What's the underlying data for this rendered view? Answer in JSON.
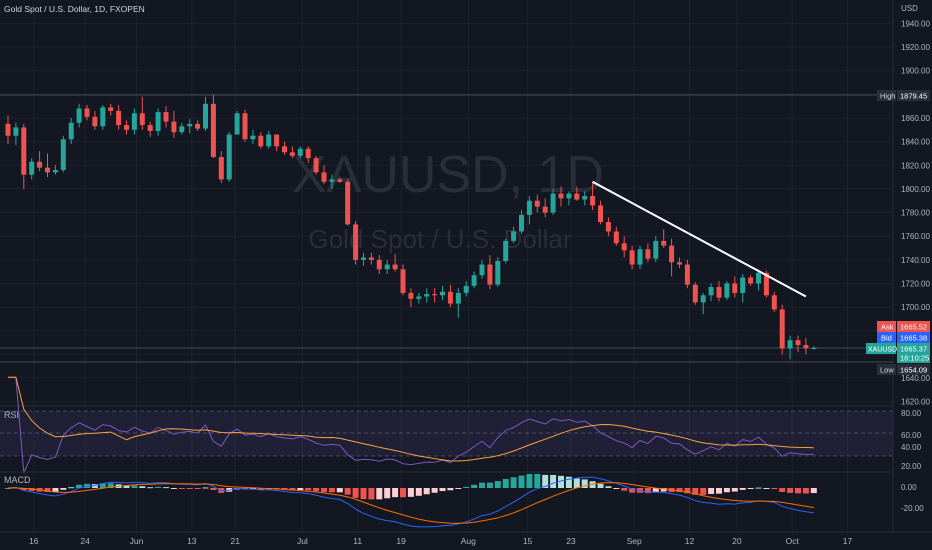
{
  "header": {
    "symbol_desc": "Gold Spot / U.S. Dollar, 1D, FXOPEN"
  },
  "watermark": {
    "ticker": "XAUUSD, 1D",
    "description": "Gold Spot / U.S. Dollar"
  },
  "price_axis": {
    "currency": "USD",
    "ticks": [
      "1940.00",
      "1920.00",
      "1900.00",
      "1880.00",
      "1860.00",
      "1840.00",
      "1820.00",
      "1800.00",
      "1780.00",
      "1760.00",
      "1740.00",
      "1720.00",
      "1700.00",
      "1680.00",
      "1660.00",
      "1640.00",
      "1620.00"
    ]
  },
  "badges": {
    "high_label": "High",
    "high_value": "1879.45",
    "ask_label": "Ask",
    "ask_value": "1665.52",
    "bid_label": "Bid",
    "bid_value": "1665.38",
    "last_label": "XAUUSD",
    "last_value": "1665.37",
    "countdown": "18:10:25",
    "low_label": "Low",
    "low_value": "1654.09"
  },
  "rsi": {
    "label": "RSI",
    "ticks": [
      "80.00",
      "60.00",
      "40.00",
      "20.00"
    ],
    "range": [
      20,
      80
    ],
    "band": [
      30,
      70
    ]
  },
  "macd": {
    "label": "MACD",
    "ticks": [
      "0.00",
      "-20.00"
    ]
  },
  "time_axis": {
    "labels": [
      "16",
      "24",
      "Jun",
      "13",
      "21",
      "Jul",
      "11",
      "19",
      "Aug",
      "15",
      "23",
      "Sep",
      "12",
      "20",
      "Oct",
      "17"
    ]
  },
  "colors": {
    "up": "#26a69a",
    "down": "#ef5350",
    "bg": "#131722",
    "grid": "#1e222d",
    "text": "#b2b5be",
    "rsi_line": "#7e57c2",
    "rsi_ma": "#f7a440",
    "macd_line": "#2962ff",
    "signal_line": "#ff6d00"
  },
  "chart_data": {
    "type": "candlestick",
    "title": "XAUUSD, 1D",
    "ylim": [
      1620,
      1950
    ],
    "trendline": {
      "from": {
        "index": 74,
        "price": 1806
      },
      "to": {
        "index": 101,
        "price": 1709
      }
    },
    "ohlc": [
      [
        1855,
        1862,
        1838,
        1845
      ],
      [
        1845,
        1856,
        1837,
        1852
      ],
      [
        1852,
        1855,
        1800,
        1812
      ],
      [
        1812,
        1826,
        1808,
        1823
      ],
      [
        1823,
        1832,
        1815,
        1818
      ],
      [
        1818,
        1830,
        1810,
        1814
      ],
      [
        1814,
        1820,
        1812,
        1816
      ],
      [
        1816,
        1845,
        1814,
        1842
      ],
      [
        1842,
        1860,
        1838,
        1856
      ],
      [
        1856,
        1872,
        1852,
        1868
      ],
      [
        1868,
        1871,
        1858,
        1861
      ],
      [
        1861,
        1866,
        1850,
        1853
      ],
      [
        1853,
        1871,
        1850,
        1869
      ],
      [
        1869,
        1872,
        1862,
        1866
      ],
      [
        1866,
        1871,
        1850,
        1854
      ],
      [
        1854,
        1858,
        1846,
        1850
      ],
      [
        1850,
        1868,
        1846,
        1864
      ],
      [
        1864,
        1878,
        1850,
        1854
      ],
      [
        1854,
        1857,
        1844,
        1849
      ],
      [
        1849,
        1868,
        1845,
        1865
      ],
      [
        1865,
        1870,
        1852,
        1857
      ],
      [
        1857,
        1866,
        1843,
        1848
      ],
      [
        1848,
        1856,
        1846,
        1853
      ],
      [
        1853,
        1859,
        1847,
        1855
      ],
      [
        1855,
        1858,
        1849,
        1851
      ],
      [
        1851,
        1878,
        1849,
        1872
      ],
      [
        1872,
        1880,
        1826,
        1827
      ],
      [
        1827,
        1832,
        1805,
        1808
      ],
      [
        1808,
        1848,
        1806,
        1846
      ],
      [
        1846,
        1866,
        1846,
        1864
      ],
      [
        1864,
        1867,
        1840,
        1842
      ],
      [
        1842,
        1850,
        1838,
        1845
      ],
      [
        1845,
        1848,
        1834,
        1836
      ],
      [
        1836,
        1849,
        1834,
        1846
      ],
      [
        1846,
        1846,
        1832,
        1836
      ],
      [
        1836,
        1840,
        1829,
        1831
      ],
      [
        1831,
        1836,
        1826,
        1828
      ],
      [
        1828,
        1836,
        1826,
        1834
      ],
      [
        1834,
        1836,
        1822,
        1826
      ],
      [
        1826,
        1828,
        1812,
        1814
      ],
      [
        1814,
        1820,
        1804,
        1806
      ],
      [
        1806,
        1812,
        1800,
        1808
      ],
      [
        1808,
        1810,
        1805,
        1806
      ],
      [
        1806,
        1808,
        1769,
        1770
      ],
      [
        1770,
        1773,
        1736,
        1740
      ],
      [
        1740,
        1746,
        1735,
        1742
      ],
      [
        1742,
        1746,
        1736,
        1740
      ],
      [
        1740,
        1744,
        1728,
        1732
      ],
      [
        1732,
        1740,
        1728,
        1736
      ],
      [
        1736,
        1745,
        1730,
        1732
      ],
      [
        1732,
        1736,
        1710,
        1712
      ],
      [
        1712,
        1716,
        1700,
        1707
      ],
      [
        1707,
        1712,
        1703,
        1709
      ],
      [
        1709,
        1716,
        1704,
        1711
      ],
      [
        1711,
        1716,
        1704,
        1710
      ],
      [
        1710,
        1718,
        1706,
        1713
      ],
      [
        1713,
        1719,
        1700,
        1703
      ],
      [
        1703,
        1716,
        1691,
        1712
      ],
      [
        1712,
        1722,
        1709,
        1718
      ],
      [
        1718,
        1730,
        1716,
        1727
      ],
      [
        1727,
        1740,
        1724,
        1736
      ],
      [
        1736,
        1744,
        1715,
        1719
      ],
      [
        1719,
        1742,
        1717,
        1739
      ],
      [
        1739,
        1758,
        1737,
        1756
      ],
      [
        1756,
        1768,
        1754,
        1764
      ],
      [
        1764,
        1782,
        1762,
        1778
      ],
      [
        1778,
        1794,
        1770,
        1790
      ],
      [
        1790,
        1795,
        1780,
        1785
      ],
      [
        1785,
        1792,
        1776,
        1780
      ],
      [
        1780,
        1800,
        1778,
        1796
      ],
      [
        1796,
        1802,
        1785,
        1792
      ],
      [
        1792,
        1798,
        1786,
        1796
      ],
      [
        1796,
        1802,
        1790,
        1791
      ],
      [
        1791,
        1798,
        1786,
        1794
      ],
      [
        1794,
        1806,
        1782,
        1786
      ],
      [
        1786,
        1790,
        1770,
        1772
      ],
      [
        1772,
        1776,
        1760,
        1764
      ],
      [
        1764,
        1768,
        1752,
        1754
      ],
      [
        1754,
        1760,
        1742,
        1748
      ],
      [
        1748,
        1752,
        1732,
        1736
      ],
      [
        1736,
        1752,
        1732,
        1749
      ],
      [
        1749,
        1754,
        1738,
        1741
      ],
      [
        1741,
        1760,
        1738,
        1756
      ],
      [
        1756,
        1766,
        1750,
        1752
      ],
      [
        1752,
        1758,
        1726,
        1738
      ],
      [
        1738,
        1742,
        1733,
        1736
      ],
      [
        1736,
        1740,
        1716,
        1719
      ],
      [
        1719,
        1721,
        1702,
        1704
      ],
      [
        1704,
        1712,
        1694,
        1710
      ],
      [
        1710,
        1720,
        1705,
        1717
      ],
      [
        1717,
        1722,
        1705,
        1708
      ],
      [
        1708,
        1722,
        1706,
        1720
      ],
      [
        1720,
        1726,
        1708,
        1712
      ],
      [
        1712,
        1728,
        1704,
        1725
      ],
      [
        1725,
        1727,
        1718,
        1720
      ],
      [
        1720,
        1732,
        1714,
        1729
      ],
      [
        1729,
        1731,
        1708,
        1710
      ],
      [
        1710,
        1713,
        1696,
        1698
      ],
      [
        1698,
        1702,
        1660,
        1665
      ],
      [
        1665,
        1676,
        1656,
        1672
      ],
      [
        1672,
        1676,
        1662,
        1668
      ],
      [
        1668,
        1674,
        1660,
        1665
      ],
      [
        1665,
        1667,
        1664,
        1665.37
      ]
    ]
  }
}
